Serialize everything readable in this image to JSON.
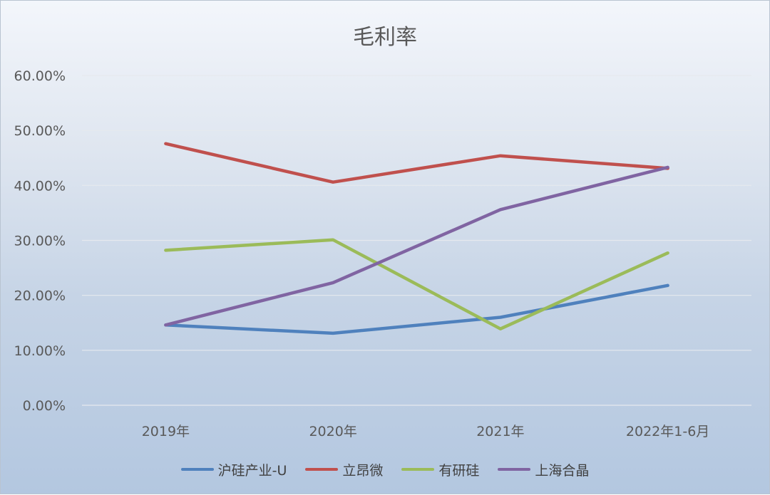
{
  "chart_data": {
    "type": "line",
    "title": "毛利率",
    "categories": [
      "2019年",
      "2020年",
      "2021年",
      "2022年1-6月"
    ],
    "ylim": [
      0,
      60
    ],
    "yticks": [
      0,
      10,
      20,
      30,
      40,
      50,
      60
    ],
    "ytick_labels": [
      "0.00%",
      "10.00%",
      "20.00%",
      "30.00%",
      "40.00%",
      "50.00%",
      "60.00%"
    ],
    "grid": true,
    "legend_position": "bottom",
    "series": [
      {
        "name": "沪硅产业-U",
        "color": "#4f81bd",
        "values": [
          14.6,
          13.1,
          16.0,
          21.8
        ]
      },
      {
        "name": "立昂微",
        "color": "#c0504d",
        "values": [
          47.6,
          40.6,
          45.4,
          43.1
        ]
      },
      {
        "name": "有研硅",
        "color": "#9bbb59",
        "values": [
          28.2,
          30.1,
          13.9,
          27.7
        ]
      },
      {
        "name": "上海合晶",
        "color": "#8064a2",
        "values": [
          14.6,
          22.3,
          35.6,
          43.3
        ]
      }
    ]
  }
}
